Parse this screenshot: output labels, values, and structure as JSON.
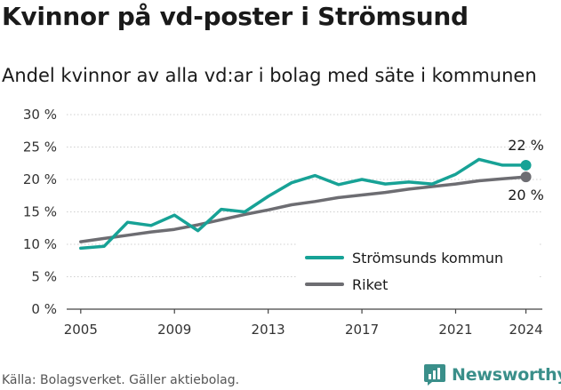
{
  "title": "Kvinnor på vd-poster i Strömsund",
  "subtitle": "Andel kvinnor av alla vd:ar i bolag med säte i kommunen",
  "source": "Källa: Bolagsverket. Gäller aktiebolag.",
  "brand": {
    "name": "Newsworthy",
    "icon": "newsworthy-logo-icon",
    "color": "#3a8f8a"
  },
  "chart_data": {
    "type": "line",
    "title": "Kvinnor på vd-poster i Strömsund",
    "subtitle": "Andel kvinnor av alla vd:ar i bolag med säte i kommunen",
    "xlabel": "",
    "ylabel": "",
    "x": [
      2005,
      2006,
      2007,
      2008,
      2009,
      2010,
      2011,
      2012,
      2013,
      2014,
      2015,
      2016,
      2017,
      2018,
      2019,
      2020,
      2021,
      2022,
      2023,
      2024
    ],
    "xticks": [
      2005,
      2009,
      2013,
      2017,
      2021,
      2024
    ],
    "xlim": [
      2004.4,
      2024.7
    ],
    "ylim": [
      0,
      30
    ],
    "yticks": [
      0,
      5,
      10,
      15,
      20,
      25,
      30
    ],
    "ytick_labels": [
      "0 %",
      "5 %",
      "10 %",
      "15 %",
      "20 %",
      "25 %",
      "30 %"
    ],
    "grid": true,
    "legend_position": "bottom-right",
    "series": [
      {
        "name": "Strömsunds kommun",
        "color": "#17a296",
        "values": [
          9.4,
          9.7,
          13.4,
          12.9,
          14.5,
          12.1,
          15.4,
          15.0,
          17.4,
          19.5,
          20.6,
          19.2,
          20.0,
          19.3,
          19.6,
          19.3,
          20.8,
          23.1,
          22.2,
          22.2
        ],
        "end_label": "22 %"
      },
      {
        "name": "Riket",
        "color": "#6d6d72",
        "values": [
          10.4,
          10.9,
          11.4,
          11.9,
          12.3,
          13.0,
          13.8,
          14.6,
          15.3,
          16.1,
          16.6,
          17.2,
          17.6,
          18.0,
          18.5,
          18.9,
          19.3,
          19.8,
          20.1,
          20.4
        ],
        "end_label": "20 %"
      }
    ]
  }
}
